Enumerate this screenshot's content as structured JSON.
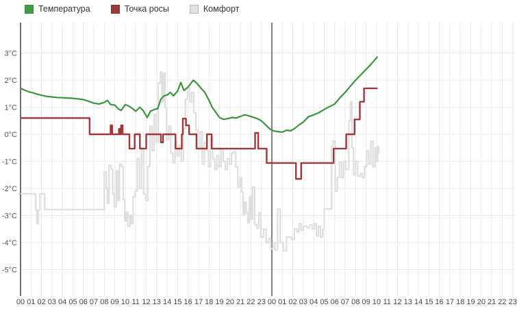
{
  "legend": {
    "items": [
      {
        "id": "temperature",
        "label": "Температура",
        "color": "#449a44",
        "border": "#3a8a3d"
      },
      {
        "id": "dew-point",
        "label": "Точка росы",
        "color": "#9e383c",
        "border": "#8a2f33"
      },
      {
        "id": "comfort",
        "label": "Комфорт",
        "color": "#e2e2e2",
        "border": "#b5b5b5"
      }
    ]
  },
  "chart_data": {
    "type": "line",
    "title": "",
    "xlabel": "",
    "ylabel": "",
    "grid": true,
    "x_axis": {
      "unit": "hour",
      "hours_total": 48,
      "day_split_hour": 24,
      "tick_labels": [
        "00",
        "01",
        "02",
        "03",
        "04",
        "05",
        "06",
        "07",
        "08",
        "09",
        "10",
        "11",
        "12",
        "13",
        "14",
        "15",
        "16",
        "17",
        "18",
        "19",
        "20",
        "21",
        "22",
        "23",
        "00",
        "01",
        "02",
        "03",
        "04",
        "05",
        "06",
        "07",
        "08",
        "09",
        "10",
        "11",
        "12",
        "13",
        "14",
        "15",
        "16",
        "17",
        "18",
        "19",
        "20",
        "21",
        "22",
        "23"
      ]
    },
    "y_axis": {
      "tick_labels": [
        "3°C",
        "2°C",
        "1°C",
        "0°C",
        "-1°C",
        "-2°C",
        "-3°C",
        "-4°C",
        "-5°C"
      ],
      "tick_values": [
        3,
        2,
        1,
        0,
        -1,
        -2,
        -3,
        -4,
        -5
      ],
      "range_shown": [
        -6,
        4
      ]
    },
    "series": [
      {
        "name": "Комфорт",
        "color": "#dedede",
        "style": "step",
        "width": 2.2,
        "points": [
          [
            0,
            -2.2
          ],
          [
            1.45,
            -2.8
          ],
          [
            1.55,
            -3.3
          ],
          [
            1.7,
            -2.8
          ],
          [
            1.85,
            -2.2
          ],
          [
            2.3,
            -2.78
          ],
          [
            8.0,
            -1.4
          ],
          [
            8.2,
            -2.0
          ],
          [
            8.3,
            -2.55
          ],
          [
            8.45,
            -1.15
          ],
          [
            8.65,
            -1.3
          ],
          [
            8.8,
            -2.2
          ],
          [
            8.95,
            -2.68
          ],
          [
            9.15,
            -1.35
          ],
          [
            9.3,
            -2.45
          ],
          [
            9.45,
            -1.1
          ],
          [
            9.65,
            -1.2
          ],
          [
            9.8,
            -2.4
          ],
          [
            9.95,
            -3.2
          ],
          [
            10.1,
            -2.9
          ],
          [
            10.25,
            -3.4
          ],
          [
            10.45,
            -3.0
          ],
          [
            10.6,
            -3.3
          ],
          [
            10.75,
            -2.3
          ],
          [
            10.95,
            -2.1
          ],
          [
            11.15,
            -0.9
          ],
          [
            11.35,
            -2.0
          ],
          [
            11.55,
            -0.5
          ],
          [
            11.75,
            -2.2
          ],
          [
            11.95,
            -2.45
          ],
          [
            12.15,
            -1.2
          ],
          [
            12.35,
            0.3
          ],
          [
            12.55,
            -0.6
          ],
          [
            12.75,
            0.73
          ],
          [
            12.95,
            -0.3
          ],
          [
            13.15,
            1.9
          ],
          [
            13.35,
            2.3
          ],
          [
            13.5,
            1.2
          ],
          [
            13.65,
            2.25
          ],
          [
            13.8,
            1.0
          ],
          [
            13.95,
            -0.2
          ],
          [
            14.15,
            0.3
          ],
          [
            14.35,
            -0.7
          ],
          [
            14.55,
            -1.05
          ],
          [
            14.75,
            -0.3
          ],
          [
            14.95,
            -0.8
          ],
          [
            15.15,
            -0.4
          ],
          [
            15.35,
            -1.0
          ],
          [
            15.55,
            0.2
          ],
          [
            15.75,
            1.3
          ],
          [
            15.95,
            1.7
          ],
          [
            16.15,
            1.2
          ],
          [
            16.35,
            1.55
          ],
          [
            16.55,
            0.8
          ],
          [
            16.75,
            0.15
          ],
          [
            16.95,
            -0.5
          ],
          [
            17.15,
            0.1
          ],
          [
            17.35,
            -1.1
          ],
          [
            17.55,
            -0.3
          ],
          [
            17.75,
            -0.6
          ],
          [
            17.95,
            -1.2
          ],
          [
            18.15,
            -0.1
          ],
          [
            18.35,
            -0.9
          ],
          [
            18.55,
            -1.3
          ],
          [
            18.75,
            -0.8
          ],
          [
            18.95,
            -1.2
          ],
          [
            19.15,
            -0.55
          ],
          [
            19.35,
            -1.0
          ],
          [
            19.55,
            -1.3
          ],
          [
            19.75,
            -0.9
          ],
          [
            19.95,
            -1.1
          ],
          [
            20.15,
            -0.7
          ],
          [
            20.35,
            -0.65
          ],
          [
            20.55,
            -1.2
          ],
          [
            20.75,
            -1.95
          ],
          [
            20.95,
            -1.6
          ],
          [
            21.1,
            -2.13
          ],
          [
            21.25,
            -2.96
          ],
          [
            21.4,
            -2.5
          ],
          [
            21.55,
            -2.9
          ],
          [
            21.7,
            -3.27
          ],
          [
            21.85,
            -2.3
          ],
          [
            22.0,
            -3.14
          ],
          [
            22.15,
            -1.95
          ],
          [
            22.35,
            -3.34
          ],
          [
            22.55,
            -3.47
          ],
          [
            22.75,
            -2.9
          ],
          [
            22.95,
            -3.8
          ],
          [
            23.2,
            -3.5
          ],
          [
            23.45,
            -4.0
          ],
          [
            23.7,
            -3.85
          ],
          [
            23.9,
            -4.23
          ],
          [
            24.1,
            -4.0
          ],
          [
            24.3,
            -4.28
          ],
          [
            24.55,
            -2.76
          ],
          [
            24.8,
            -4.0
          ],
          [
            25.1,
            -4.3
          ],
          [
            25.4,
            -3.8
          ],
          [
            25.9,
            -3.9
          ],
          [
            26.15,
            -3.5
          ],
          [
            26.4,
            -3.6
          ],
          [
            26.6,
            -3.3
          ],
          [
            26.8,
            -3.55
          ],
          [
            27.0,
            -3.4
          ],
          [
            27.3,
            -3.45
          ],
          [
            27.6,
            -3.35
          ],
          [
            27.85,
            -3.5
          ],
          [
            28.05,
            -3.3
          ],
          [
            28.25,
            -3.75
          ],
          [
            28.45,
            -3.4
          ],
          [
            28.65,
            -3.8
          ],
          [
            28.85,
            -3.5
          ],
          [
            29.0,
            -2.76
          ],
          [
            29.7,
            -0.45
          ],
          [
            29.85,
            -0.25
          ],
          [
            30.05,
            -2.1
          ],
          [
            30.25,
            -1.6
          ],
          [
            30.45,
            -1.04
          ],
          [
            30.65,
            -1.6
          ],
          [
            30.85,
            -1.0
          ],
          [
            31.05,
            -1.3
          ],
          [
            31.35,
            0.5
          ],
          [
            31.5,
            1.2
          ],
          [
            31.65,
            -0.5
          ],
          [
            31.8,
            -1.5
          ],
          [
            32.0,
            -1.0
          ],
          [
            32.2,
            -1.55
          ],
          [
            32.45,
            -1.45
          ],
          [
            32.65,
            -1.6
          ],
          [
            32.85,
            -1.2
          ],
          [
            33.05,
            -0.6
          ],
          [
            33.25,
            -1.1
          ],
          [
            33.45,
            -0.25
          ],
          [
            33.65,
            -1.2
          ],
          [
            33.85,
            -0.5
          ],
          [
            34.0,
            -1.0
          ],
          [
            34.1,
            -0.45
          ],
          [
            34.2,
            -0.7
          ]
        ]
      },
      {
        "name": "Точка росы",
        "color": "#9e383c",
        "style": "step",
        "width": 2.4,
        "points": [
          [
            0,
            0.6
          ],
          [
            6.6,
            0
          ],
          [
            8.6,
            0.33
          ],
          [
            8.75,
            0
          ],
          [
            9.4,
            0.2
          ],
          [
            9.5,
            0
          ],
          [
            9.6,
            0.33
          ],
          [
            9.75,
            0
          ],
          [
            10.4,
            -0.53
          ],
          [
            10.9,
            0
          ],
          [
            11.4,
            -0.53
          ],
          [
            12.0,
            0
          ],
          [
            13.4,
            -0.3
          ],
          [
            13.6,
            0
          ],
          [
            14.8,
            -0.53
          ],
          [
            15.4,
            0
          ],
          [
            15.5,
            0.58
          ],
          [
            15.8,
            0.33
          ],
          [
            16.1,
            0
          ],
          [
            16.8,
            -0.53
          ],
          [
            17.8,
            0
          ],
          [
            18.25,
            -0.53
          ],
          [
            22.4,
            0.05
          ],
          [
            22.7,
            -0.53
          ],
          [
            23.5,
            -1.06
          ],
          [
            26.3,
            -1.65
          ],
          [
            26.8,
            -1.06
          ],
          [
            29.9,
            -0.53
          ],
          [
            31.1,
            0
          ],
          [
            31.9,
            0.55
          ],
          [
            32.4,
            1.2
          ],
          [
            32.8,
            1.7
          ],
          [
            34.1,
            1.7
          ]
        ]
      },
      {
        "name": "Температура",
        "color": "#3f9142",
        "style": "linear",
        "width": 2.2,
        "points": [
          [
            0,
            1.7
          ],
          [
            0.4,
            1.63
          ],
          [
            0.8,
            1.57
          ],
          [
            1.2,
            1.53
          ],
          [
            1.6,
            1.48
          ],
          [
            2.0,
            1.44
          ],
          [
            2.5,
            1.4
          ],
          [
            3.0,
            1.38
          ],
          [
            3.5,
            1.36
          ],
          [
            4.0,
            1.35
          ],
          [
            4.5,
            1.34
          ],
          [
            5.0,
            1.33
          ],
          [
            5.5,
            1.31
          ],
          [
            6.0,
            1.28
          ],
          [
            6.5,
            1.22
          ],
          [
            7.0,
            1.15
          ],
          [
            7.5,
            1.12
          ],
          [
            8.0,
            1.18
          ],
          [
            8.3,
            1.25
          ],
          [
            8.6,
            1.1
          ],
          [
            9.0,
            1.08
          ],
          [
            9.3,
            0.95
          ],
          [
            9.6,
            0.88
          ],
          [
            10.0,
            1.1
          ],
          [
            10.3,
            1.05
          ],
          [
            10.7,
            0.95
          ],
          [
            11.0,
            0.85
          ],
          [
            11.4,
            1.0
          ],
          [
            11.7,
            0.88
          ],
          [
            12.1,
            0.62
          ],
          [
            12.4,
            0.85
          ],
          [
            12.8,
            0.92
          ],
          [
            13.1,
            0.95
          ],
          [
            13.4,
            1.3
          ],
          [
            13.7,
            1.42
          ],
          [
            14.0,
            1.45
          ],
          [
            14.3,
            1.55
          ],
          [
            14.6,
            1.42
          ],
          [
            15.0,
            1.6
          ],
          [
            15.3,
            1.92
          ],
          [
            15.6,
            1.62
          ],
          [
            16.0,
            1.75
          ],
          [
            16.5,
            2.0
          ],
          [
            16.8,
            1.9
          ],
          [
            17.2,
            1.72
          ],
          [
            17.6,
            1.55
          ],
          [
            18.0,
            1.25
          ],
          [
            18.3,
            1.0
          ],
          [
            18.6,
            0.84
          ],
          [
            19.0,
            0.62
          ],
          [
            19.4,
            0.55
          ],
          [
            19.8,
            0.58
          ],
          [
            20.2,
            0.62
          ],
          [
            20.6,
            0.6
          ],
          [
            21.0,
            0.66
          ],
          [
            21.4,
            0.72
          ],
          [
            21.8,
            0.68
          ],
          [
            22.2,
            0.63
          ],
          [
            22.6,
            0.58
          ],
          [
            23.0,
            0.5
          ],
          [
            23.4,
            0.35
          ],
          [
            23.8,
            0.2
          ],
          [
            24.2,
            0.12
          ],
          [
            24.6,
            0.1
          ],
          [
            25.0,
            0.08
          ],
          [
            25.4,
            0.15
          ],
          [
            25.8,
            0.13
          ],
          [
            26.2,
            0.22
          ],
          [
            26.6,
            0.35
          ],
          [
            27.0,
            0.45
          ],
          [
            27.5,
            0.65
          ],
          [
            28.0,
            0.72
          ],
          [
            28.5,
            0.8
          ],
          [
            29.0,
            0.92
          ],
          [
            29.5,
            1.02
          ],
          [
            30.0,
            1.12
          ],
          [
            30.5,
            1.35
          ],
          [
            31.0,
            1.55
          ],
          [
            31.5,
            1.78
          ],
          [
            32.0,
            2.0
          ],
          [
            32.5,
            2.2
          ],
          [
            33.0,
            2.4
          ],
          [
            33.5,
            2.6
          ],
          [
            34.1,
            2.87
          ]
        ]
      }
    ],
    "colors": {
      "grid": "#e9e9e9",
      "axis": "#333333",
      "day_split_line": "#4d4d4d",
      "tick_text": "#555555"
    }
  }
}
